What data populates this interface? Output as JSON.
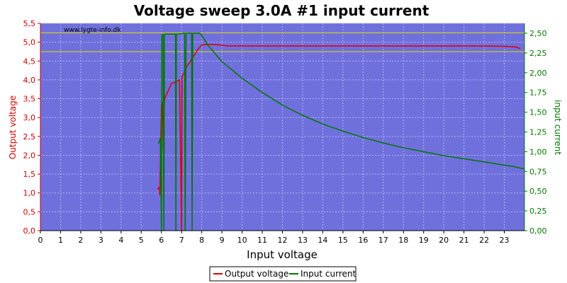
{
  "chart_data": {
    "type": "line",
    "title": "Voltage sweep 3.0A #1 input current",
    "watermark": "www.lygte-info.dk",
    "xlabel": "Input voltage",
    "ylabel_left": "Output voltage",
    "ylabel_right": "input current",
    "xlim": [
      0,
      24
    ],
    "ylim_left": [
      0,
      5.5
    ],
    "ylim_right": [
      0,
      2.625
    ],
    "x_ticks": [
      "0",
      "1",
      "2",
      "3",
      "4",
      "5",
      "6",
      "7",
      "8",
      "9",
      "10",
      "11",
      "12",
      "13",
      "14",
      "15",
      "16",
      "17",
      "18",
      "19",
      "20",
      "21",
      "22",
      "23"
    ],
    "y_left_ticks": [
      "0,0",
      "0,5",
      "1,0",
      "1,5",
      "2,0",
      "2,5",
      "3,0",
      "3,5",
      "4,0",
      "4,5",
      "5,0",
      "5,5"
    ],
    "y_right_ticks": [
      "0,00",
      "0,25",
      "0,50",
      "0,75",
      "1,00",
      "1,25",
      "1,50",
      "1,75",
      "2,00",
      "2,25",
      "2,50"
    ],
    "grid": true,
    "reference_lines_left": [
      5.25,
      4.75
    ],
    "legend_position": "bottom-center",
    "colors": {
      "plot_bg": "#7070dd",
      "output_voltage": "#dd0000",
      "input_current": "#007700",
      "reference": "#dddd00",
      "left_axis": "#cc0000",
      "right_axis": "#007700"
    },
    "series": [
      {
        "name": "Output voltage",
        "axis": "left",
        "x": [
          5.8,
          5.9,
          5.92,
          6.0,
          6.05,
          6.1,
          6.12,
          6.15,
          6.18,
          6.2,
          6.5,
          6.9,
          7.0,
          7.02,
          7.1,
          7.2,
          7.5,
          7.8,
          8.0,
          8.5,
          9.0,
          9.3,
          12,
          16,
          20,
          22,
          23,
          23.5,
          23.8
        ],
        "y": [
          1.1,
          1.15,
          0.95,
          3.35,
          3.4,
          2.1,
          3.2,
          3.45,
          3.5,
          3.55,
          3.9,
          4.0,
          0.0,
          4.1,
          4.15,
          4.3,
          4.55,
          4.8,
          4.93,
          4.94,
          4.92,
          4.9,
          4.9,
          4.9,
          4.9,
          4.9,
          4.89,
          4.88,
          4.83
        ]
      },
      {
        "name": "Input current",
        "axis": "right",
        "x": [
          5.85,
          5.95,
          6.0,
          6.02,
          6.08,
          6.12,
          6.15,
          6.18,
          6.25,
          6.7,
          6.72,
          6.74,
          6.8,
          7.15,
          7.18,
          7.22,
          7.25,
          7.5,
          7.52,
          7.55,
          7.6,
          7.9,
          8.0,
          8.3,
          9,
          10,
          11,
          12,
          13,
          14,
          15,
          16,
          17,
          18,
          19,
          20,
          21,
          22,
          23,
          23.5,
          24
        ],
        "y": [
          1.1,
          1.17,
          0.0,
          2.48,
          2.48,
          0.0,
          2.49,
          2.49,
          2.49,
          2.49,
          0.0,
          2.49,
          2.49,
          2.5,
          0.0,
          2.5,
          2.5,
          2.5,
          0.0,
          2.5,
          2.5,
          2.5,
          2.47,
          2.35,
          2.14,
          1.93,
          1.75,
          1.59,
          1.46,
          1.35,
          1.26,
          1.18,
          1.11,
          1.05,
          1.0,
          0.95,
          0.91,
          0.87,
          0.83,
          0.81,
          0.78
        ]
      }
    ]
  }
}
